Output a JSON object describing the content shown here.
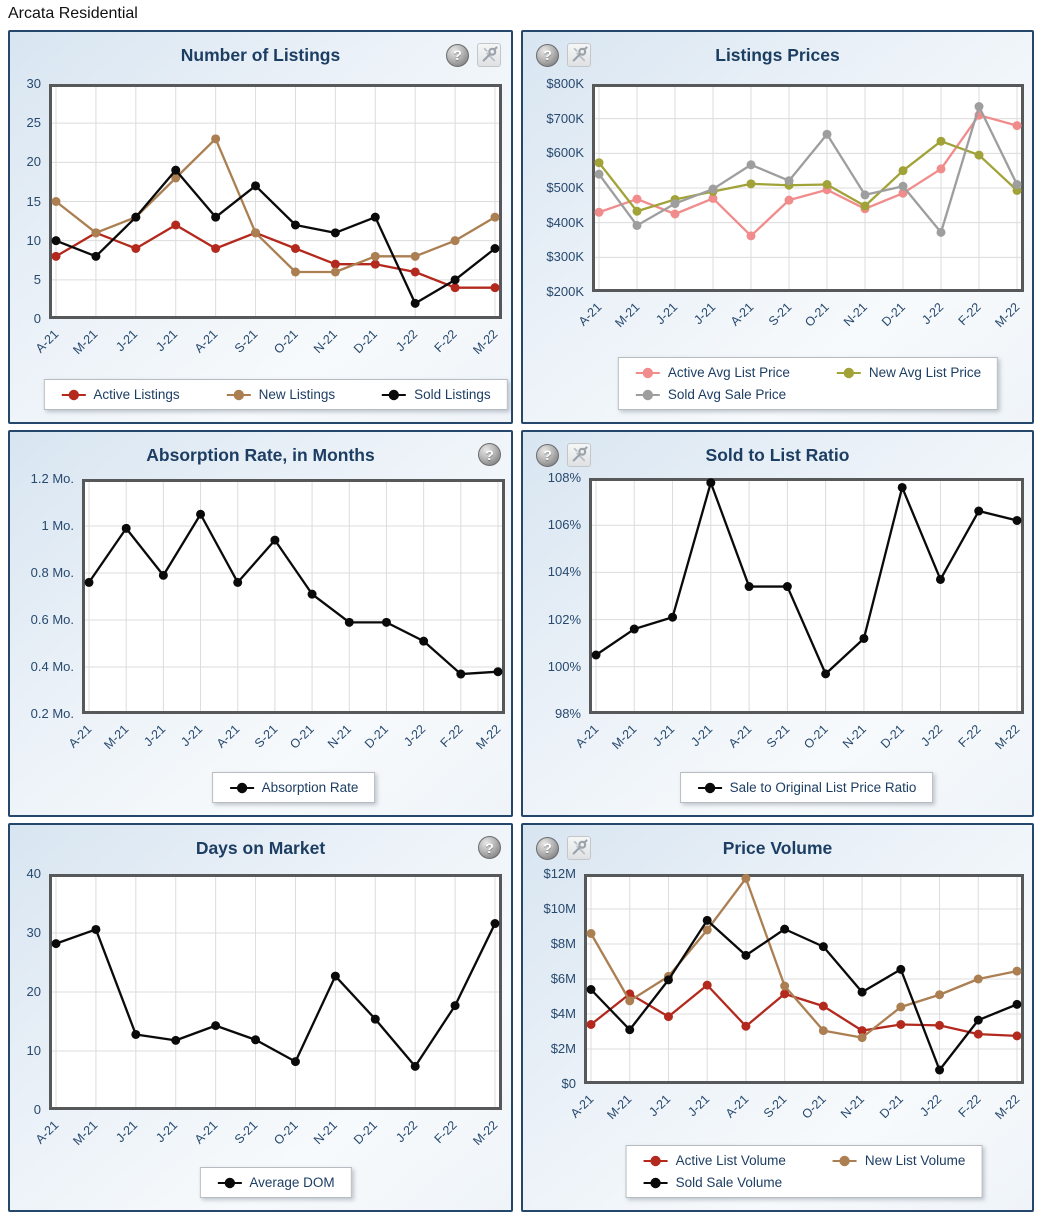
{
  "page": {
    "title": "Arcata Residential"
  },
  "icons": {
    "help_glyph": "?"
  },
  "categories": [
    "A-21",
    "M-21",
    "J-21",
    "J-21",
    "A-21",
    "S-21",
    "O-21",
    "N-21",
    "D-21",
    "J-22",
    "F-22",
    "M-22"
  ],
  "chart_data": [
    {
      "id": "number-of-listings",
      "type": "line",
      "title": "Number of Listings",
      "ylim": [
        0,
        30
      ],
      "y_ticks": [
        0,
        5,
        10,
        15,
        20,
        25,
        30
      ],
      "y_tick_labels": [
        "0",
        "5",
        "10",
        "15",
        "20",
        "25",
        "30"
      ],
      "grid": true,
      "legend_position": "bottom",
      "legend_rows": [
        [
          0,
          1,
          2
        ]
      ],
      "series": [
        {
          "name": "Active Listings",
          "color": "#b3291e",
          "values": [
            8,
            11,
            9,
            12,
            9,
            11,
            9,
            7,
            7,
            6,
            4,
            4
          ]
        },
        {
          "name": "New Listings",
          "color": "#ab7f52",
          "values": [
            15,
            11,
            13,
            18,
            23,
            11,
            6,
            6,
            8,
            8,
            10,
            13
          ]
        },
        {
          "name": "Sold Listings",
          "color": "#0a0a0a",
          "values": [
            10,
            8,
            13,
            19,
            13,
            17,
            12,
            11,
            13,
            2,
            5,
            9
          ]
        }
      ]
    },
    {
      "id": "listings-prices",
      "type": "line",
      "title": "Listings Prices",
      "ylim": [
        200000,
        800000
      ],
      "y_ticks": [
        200000,
        300000,
        400000,
        500000,
        600000,
        700000,
        800000
      ],
      "y_tick_labels": [
        "$200K",
        "$300K",
        "$400K",
        "$500K",
        "$600K",
        "$700K",
        "$800K"
      ],
      "grid": true,
      "legend_position": "bottom",
      "legend_rows": [
        [
          0,
          1
        ],
        [
          2
        ]
      ],
      "series": [
        {
          "name": "Active Avg List Price",
          "color": "#f18c8c",
          "values": [
            430000,
            468000,
            425000,
            470000,
            362000,
            465000,
            495000,
            440000,
            485000,
            555000,
            710000,
            680000
          ]
        },
        {
          "name": "New Avg List Price",
          "color": "#a1a238",
          "values": [
            573000,
            433000,
            467000,
            490000,
            512000,
            508000,
            510000,
            448000,
            550000,
            635000,
            595000,
            493000
          ]
        },
        {
          "name": "Sold Avg Sale Price",
          "color": "#9e9e9e",
          "values": [
            540000,
            392000,
            455000,
            497000,
            567000,
            521000,
            655000,
            480000,
            505000,
            372000,
            735000,
            510000
          ]
        }
      ]
    },
    {
      "id": "absorption-rate",
      "type": "line",
      "title": "Absorption Rate, in Months",
      "ylim": [
        0.2,
        1.2
      ],
      "y_ticks": [
        0.2,
        0.4,
        0.6,
        0.8,
        1.0,
        1.2
      ],
      "y_tick_labels": [
        "0.2 Mo.",
        "0.4 Mo.",
        "0.6 Mo.",
        "0.8 Mo.",
        "1 Mo.",
        "1.2 Mo."
      ],
      "grid": true,
      "legend_position": "bottom",
      "legend_rows": [
        [
          0
        ]
      ],
      "series": [
        {
          "name": "Absorption Rate",
          "color": "#0a0a0a",
          "values": [
            0.76,
            0.99,
            0.79,
            1.05,
            0.76,
            0.94,
            0.71,
            0.59,
            0.59,
            0.51,
            0.37,
            0.38
          ]
        }
      ]
    },
    {
      "id": "sold-to-list-ratio",
      "type": "line",
      "title": "Sold to List Ratio",
      "ylim": [
        98,
        108
      ],
      "y_ticks": [
        98,
        100,
        102,
        104,
        106,
        108
      ],
      "y_tick_labels": [
        "98%",
        "100%",
        "102%",
        "104%",
        "106%",
        "108%"
      ],
      "grid": true,
      "legend_position": "bottom",
      "legend_rows": [
        [
          0
        ]
      ],
      "series": [
        {
          "name": "Sale to Original List Price Ratio",
          "color": "#0a0a0a",
          "values": [
            100.5,
            101.6,
            102.1,
            107.8,
            103.4,
            103.4,
            99.7,
            101.2,
            107.6,
            103.7,
            106.6,
            106.2
          ]
        }
      ]
    },
    {
      "id": "days-on-market",
      "type": "line",
      "title": "Days on Market",
      "ylim": [
        0,
        40
      ],
      "y_ticks": [
        0,
        10,
        20,
        30,
        40
      ],
      "y_tick_labels": [
        "0",
        "10",
        "20",
        "30",
        "40"
      ],
      "grid": true,
      "legend_position": "bottom",
      "legend_rows": [
        [
          0
        ]
      ],
      "series": [
        {
          "name": "Average DOM",
          "color": "#0a0a0a",
          "values": [
            28.2,
            30.6,
            12.8,
            11.8,
            14.3,
            11.9,
            8.2,
            22.7,
            15.4,
            7.4,
            17.7,
            31.6
          ]
        }
      ]
    },
    {
      "id": "price-volume",
      "type": "line",
      "title": "Price Volume",
      "ylim": [
        0,
        12000000
      ],
      "y_ticks": [
        0,
        2000000,
        4000000,
        6000000,
        8000000,
        10000000,
        12000000
      ],
      "y_tick_labels": [
        "$0",
        "$2M",
        "$4M",
        "$6M",
        "$8M",
        "$10M",
        "$12M"
      ],
      "grid": true,
      "legend_position": "bottom",
      "legend_rows": [
        [
          0,
          1
        ],
        [
          2
        ]
      ],
      "series": [
        {
          "name": "Active List Volume",
          "color": "#b3291e",
          "values": [
            3400000,
            5150000,
            3850000,
            5650000,
            3300000,
            5150000,
            4450000,
            3050000,
            3400000,
            3350000,
            2850000,
            2750000
          ]
        },
        {
          "name": "New List Volume",
          "color": "#ab7f52",
          "values": [
            8600000,
            4750000,
            6150000,
            8800000,
            11750000,
            5600000,
            3050000,
            2650000,
            4400000,
            5100000,
            6000000,
            6450000
          ]
        },
        {
          "name": "Sold Sale Volume",
          "color": "#0a0a0a",
          "values": [
            5400000,
            3100000,
            5950000,
            9350000,
            7350000,
            8850000,
            7850000,
            5250000,
            6550000,
            800000,
            3650000,
            4550000
          ]
        }
      ]
    }
  ]
}
